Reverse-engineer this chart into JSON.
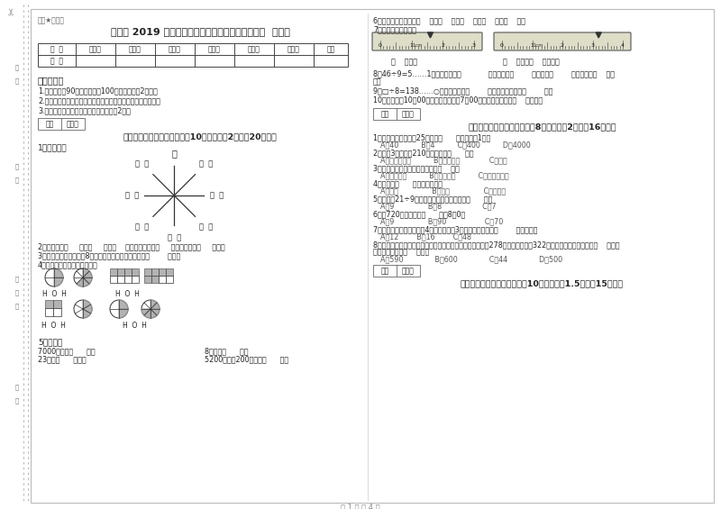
{
  "bg_color": "#ffffff",
  "title": "苏教版 2019 年三年级数学下学期全真模拟考试试卷  含答案",
  "subtitle": "稳密★自用版",
  "table_headers": [
    "题  号",
    "填空题",
    "选择题",
    "判断题",
    "计算题",
    "综合题",
    "应用题",
    "总分"
  ],
  "table_row": [
    "得  分",
    "",
    "",
    "",
    "",
    "",
    "",
    ""
  ],
  "instructions_title": "考试须知：",
  "instructions": [
    "1.考试时间：90分钟，满分为100分（含卷面分2分）。",
    "2.请首先按要求在试卷的指定位置填写您的姓名、班级、学号。",
    "3.不要在试卷上乱写乱画，卷面不整洁扣2分。"
  ],
  "section1_header": "一、用心思考，正确填空（共10小题，每题2分，共20分）。",
  "q1": "1．填一填。",
  "q2": "2．你出生于（     ）年（     ）月（    ）日，哪一年是（     ）年，全年有（     ）天。",
  "q3": "3．小明从一楼到三楼用8秒，照这样他从一楼到五楼用（        ）秒。",
  "q4": "4．看图写分数，并比较大小。",
  "q5": "5．换算。",
  "q5a": "7000千克＝（      ）吨",
  "q5b": "8千克＝（      ）克",
  "q5c": "23吨＝（      ）千克",
  "q5d": "5200千克－200千克＝（      ）吨",
  "q6": "6．常用的长度单位有（    ）、（    ）、（    ）、（    ）、（    ）。",
  "q7": "7．量出钉子的长度。",
  "q7a": "（    ）毫米",
  "q7b": "（    ）厘米（    ）毫米。",
  "q8": "8．46÷9=5……1中，被除数是（            ），除数是（        ），商是（        ），余数是（    ）。",
  "q9": "9．□÷8=138……○，余数最大填（        ），这时被除数是（        ）。",
  "q10": "10．小林晚上10：00睡觉，第二天早上7：00起床，他一共睡了（    ）小时。",
  "section2_header": "二、反复比较，慎重选择（共8小题，每题2分，共16分）。",
  "mc1": "1．平均每个同学体重25千克，（      ）名同学重1吨。",
  "mc1a": "A．40          B．4          C．400          D．4000",
  "mc2": "2．爸爸3小时行了210千米，他是（      ）。",
  "mc2a": "A．乘公共汽车          B．骑自行车             C．步行",
  "mc3": "3．下面现象中属于平移现象的是（    ）。",
  "mc3a": "A．开关抽屉          B．打开瓶盖          C．转动的风车",
  "mc4": "4．四边形（      ）平行四边形。",
  "mc4a": "A．一定               B．可能               C．不可能",
  "mc5": "5．要使口21÷9的商是三位数，口里只能填（      ）。",
  "mc5a": "A．9               B．8                  C．7",
  "mc6": "6．从720里连续减去（      ）个8得0。",
  "mc6a": "A．9               B．90                 C．70",
  "mc7": "7．一个长方形花坛的宽是4米，长是宽的3倍，花坛的面积是（        ）平方米。",
  "mc7a": "A．12        B．16        C．48",
  "mc8": "8．广州新电视塔是广州市目前最高的建筑，它比中信大厦高278米，中信大厦高322米，那么广州新电视塔高（    ）米。",
  "mc8a": "A．590              B．600              C．44              D．500",
  "section3_header": "三、仔细推敲，正确判断（共10小题，每题1.5分，共15分）。",
  "page_footer": "第 1 页 共 4 页",
  "border_color": "#999999",
  "text_color": "#222222",
  "light_text": "#555555"
}
